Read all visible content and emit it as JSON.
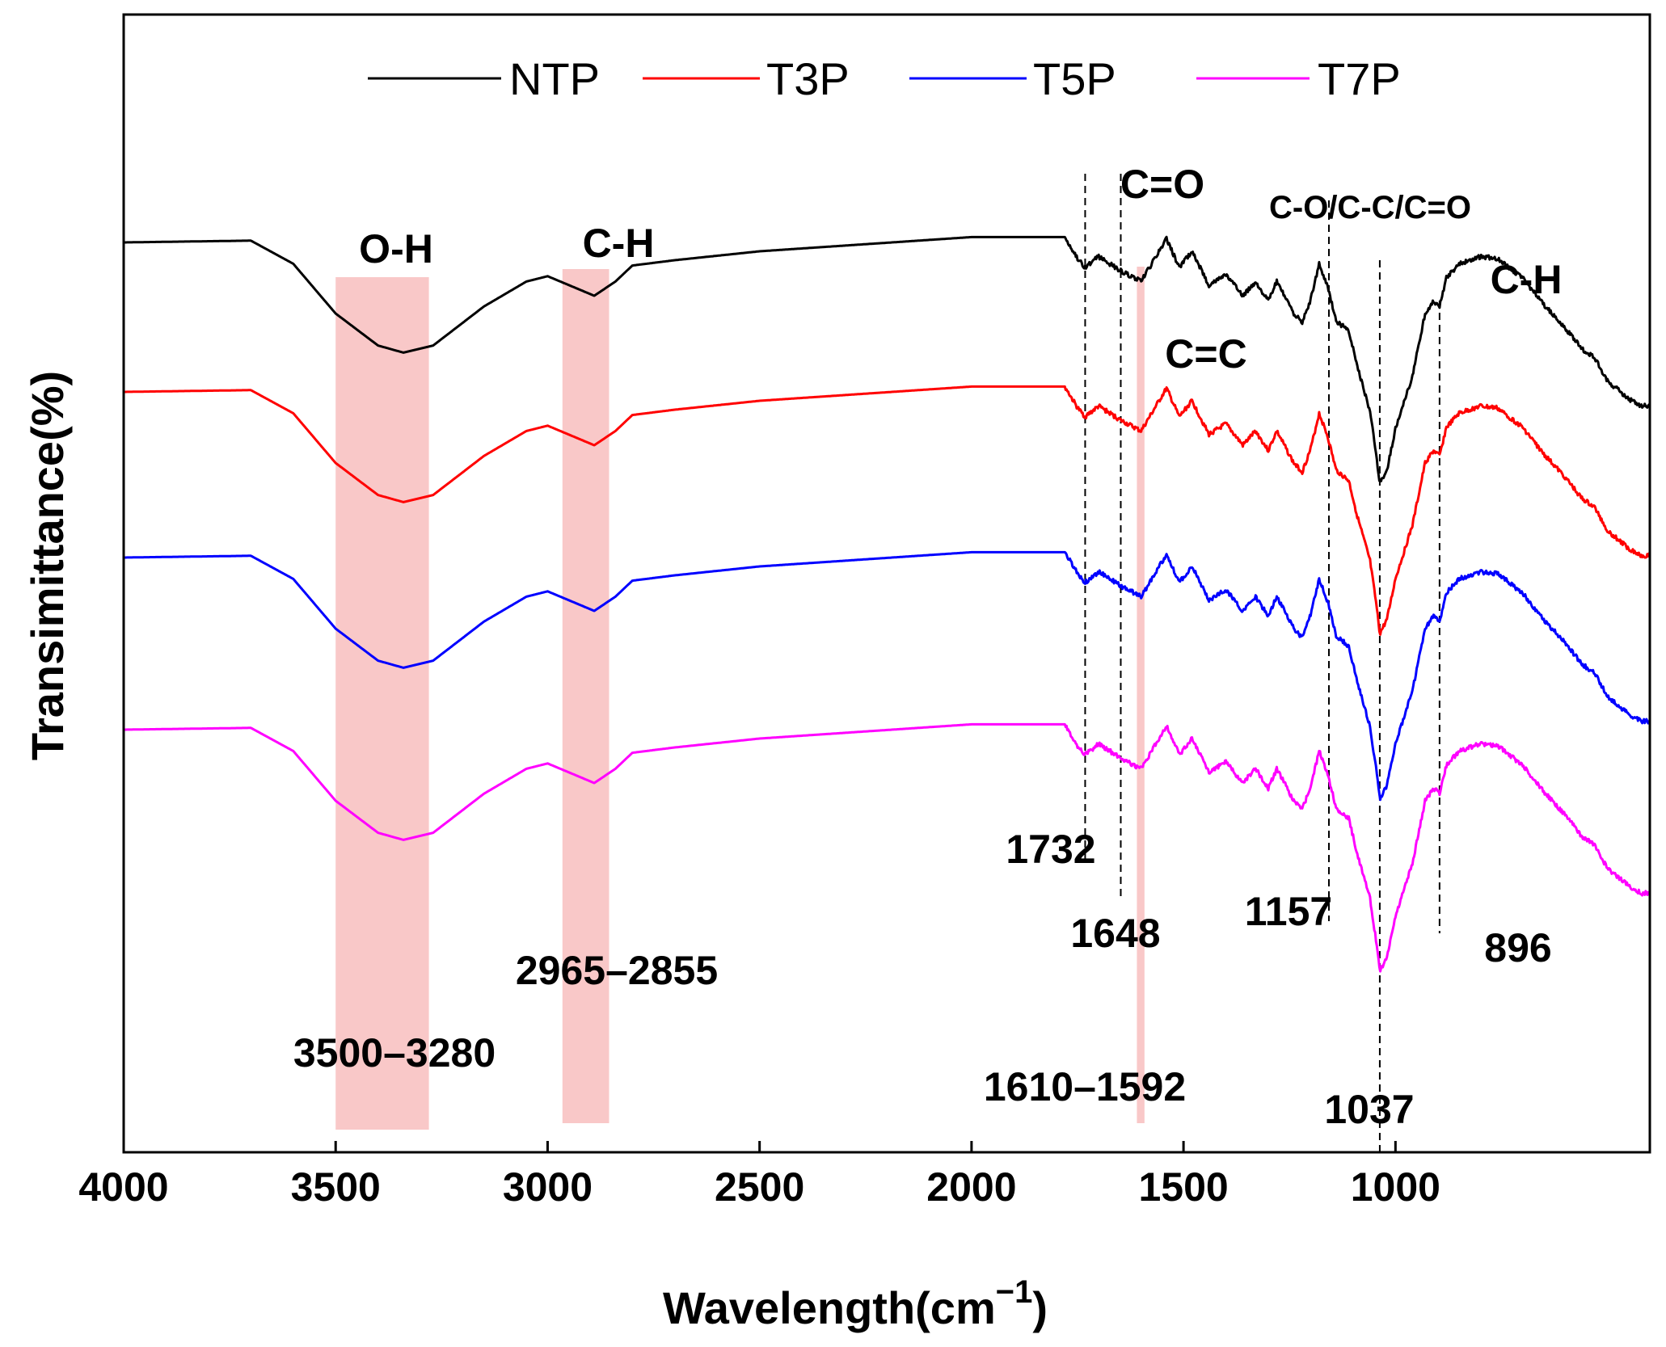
{
  "chart_data": {
    "type": "line",
    "title": "",
    "xlabel": "Wavelength(cm",
    "xlabel_sup": "−1",
    "xlabel_close": ")",
    "ylabel": "Transimittance(%)",
    "xlim": [
      4000,
      400
    ],
    "x_reversed": true,
    "x_ticks": [
      4000,
      3500,
      3000,
      2500,
      2000,
      1500,
      1000
    ],
    "y_ticks_shown": false,
    "legend_position": "top",
    "series": [
      {
        "name": "NTP",
        "color": "#000000",
        "offset": 0
      },
      {
        "name": "T3P",
        "color": "#ff0000",
        "offset": 1
      },
      {
        "name": "T5P",
        "color": "#0000ff",
        "offset": 2
      },
      {
        "name": "T7P",
        "color": "#ff00ff",
        "offset": 3
      }
    ],
    "shaded_regions": [
      {
        "from": 3500,
        "to": 3280,
        "color": "#f9c8c8",
        "range_label": "3500–3280",
        "group_label": "O-H"
      },
      {
        "from": 2965,
        "to": 2855,
        "color": "#f9c8c8",
        "range_label": "2965–2855",
        "group_label": "C-H"
      },
      {
        "from": 1610,
        "to": 1592,
        "color": "#f9c8c8",
        "range_label": "1610–1592",
        "group_label": "C=C"
      }
    ],
    "marked_peaks": [
      {
        "x": 1732,
        "label": "1732"
      },
      {
        "x": 1648,
        "label": "1648"
      },
      {
        "x": 1157,
        "label": "1157"
      },
      {
        "x": 1037,
        "label": "1037"
      },
      {
        "x": 896,
        "label": "896"
      }
    ],
    "group_labels": {
      "c_eq_o": "C=O",
      "c_o_c_c_c_eq_o": "C-O/C-C/C=O",
      "c_h_fingerprint": "C-H"
    },
    "spectrum_base_profile": [
      [
        4000,
        0.0
      ],
      [
        3700,
        -0.01
      ],
      [
        3600,
        0.12
      ],
      [
        3500,
        0.4
      ],
      [
        3400,
        0.58
      ],
      [
        3340,
        0.62
      ],
      [
        3270,
        0.58
      ],
      [
        3150,
        0.36
      ],
      [
        3050,
        0.22
      ],
      [
        3000,
        0.19
      ],
      [
        2950,
        0.24
      ],
      [
        2890,
        0.3
      ],
      [
        2840,
        0.22
      ],
      [
        2800,
        0.13
      ],
      [
        2700,
        0.1
      ],
      [
        2500,
        0.05
      ],
      [
        2000,
        -0.03
      ],
      [
        1780,
        -0.03
      ],
      [
        1750,
        0.09
      ],
      [
        1732,
        0.14
      ],
      [
        1700,
        0.08
      ],
      [
        1648,
        0.16
      ],
      [
        1600,
        0.22
      ],
      [
        1540,
        -0.02
      ],
      [
        1510,
        0.14
      ],
      [
        1480,
        0.05
      ],
      [
        1440,
        0.24
      ],
      [
        1400,
        0.18
      ],
      [
        1360,
        0.3
      ],
      [
        1330,
        0.22
      ],
      [
        1300,
        0.33
      ],
      [
        1280,
        0.22
      ],
      [
        1240,
        0.4
      ],
      [
        1220,
        0.45
      ],
      [
        1200,
        0.32
      ],
      [
        1180,
        0.12
      ],
      [
        1160,
        0.25
      ],
      [
        1140,
        0.44
      ],
      [
        1110,
        0.5
      ],
      [
        1090,
        0.7
      ],
      [
        1060,
        0.95
      ],
      [
        1045,
        1.2
      ],
      [
        1037,
        1.36
      ],
      [
        1020,
        1.28
      ],
      [
        1000,
        1.05
      ],
      [
        960,
        0.75
      ],
      [
        930,
        0.4
      ],
      [
        910,
        0.33
      ],
      [
        896,
        0.36
      ],
      [
        880,
        0.2
      ],
      [
        850,
        0.12
      ],
      [
        800,
        0.08
      ],
      [
        760,
        0.09
      ],
      [
        700,
        0.2
      ],
      [
        650,
        0.35
      ],
      [
        600,
        0.48
      ],
      [
        560,
        0.6
      ],
      [
        530,
        0.65
      ],
      [
        500,
        0.78
      ],
      [
        450,
        0.88
      ],
      [
        420,
        0.92
      ],
      [
        400,
        0.92
      ]
    ]
  }
}
